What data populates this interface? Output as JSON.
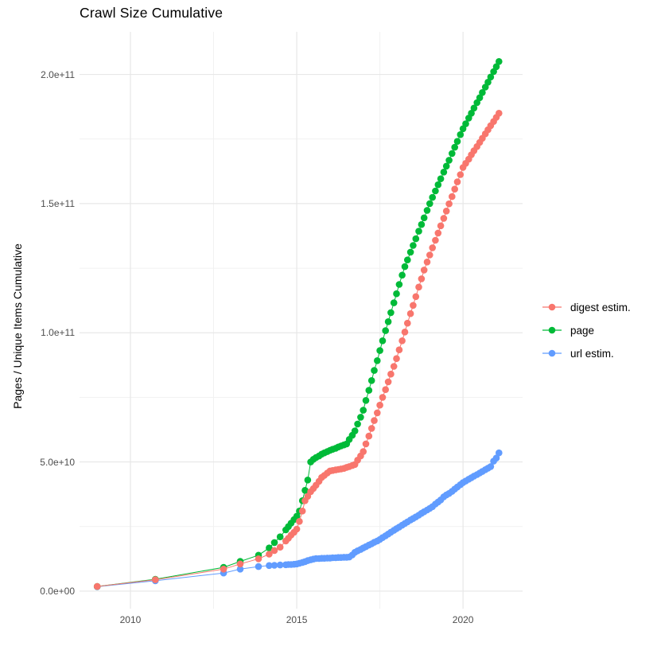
{
  "chart_data": {
    "type": "line",
    "title": "Crawl Size Cumulative",
    "xlabel": "",
    "ylabel": "Pages / Unique Items Cumulative",
    "legend_position": "right",
    "grid": true,
    "xlim": [
      2008.47,
      2021.79
    ],
    "ylim_e9": [
      -6.8,
      216.5
    ],
    "x_ticks": [
      {
        "value": 2010,
        "label": "2010"
      },
      {
        "value": 2015,
        "label": "2015"
      },
      {
        "value": 2020,
        "label": "2020"
      }
    ],
    "x_minor_ticks": [
      2012.5,
      2017.5
    ],
    "y_ticks": [
      {
        "value_e9": 0,
        "label": "0.0e+00"
      },
      {
        "value_e9": 50,
        "label": "5.0e+10"
      },
      {
        "value_e9": 100,
        "label": "1.0e+11"
      },
      {
        "value_e9": 150,
        "label": "1.5e+11"
      },
      {
        "value_e9": 200,
        "label": "2.0e+11"
      }
    ],
    "y_minor_ticks_e9": [
      25,
      75,
      125,
      175
    ],
    "unit_note": "point values are in billions (1e9) of pages / unique items",
    "draw_order": [
      "url estim.",
      "page",
      "digest estim."
    ],
    "series": [
      {
        "name": "digest estim.",
        "color": "#F8766D",
        "points": [
          [
            2009.0,
            1.8
          ],
          [
            2010.75,
            4.4
          ],
          [
            2012.8,
            8.5
          ],
          [
            2013.3,
            10.5
          ],
          [
            2013.85,
            12.5
          ],
          [
            2014.17,
            14.3
          ],
          [
            2014.33,
            15.7
          ],
          [
            2014.5,
            17.0
          ],
          [
            2014.67,
            19.4
          ],
          [
            2014.75,
            20.5
          ],
          [
            2014.83,
            21.7
          ],
          [
            2014.92,
            22.8
          ],
          [
            2015.0,
            24.0
          ],
          [
            2015.08,
            27.0
          ],
          [
            2015.17,
            31.0
          ],
          [
            2015.25,
            35.0
          ],
          [
            2015.33,
            36.7
          ],
          [
            2015.42,
            38.5
          ],
          [
            2015.5,
            39.7
          ],
          [
            2015.58,
            41.0
          ],
          [
            2015.67,
            42.5
          ],
          [
            2015.75,
            44.0
          ],
          [
            2015.83,
            44.8
          ],
          [
            2015.92,
            45.7
          ],
          [
            2016.0,
            46.5
          ],
          [
            2016.08,
            46.7
          ],
          [
            2016.17,
            46.9
          ],
          [
            2016.25,
            47.1
          ],
          [
            2016.33,
            47.3
          ],
          [
            2016.42,
            47.5
          ],
          [
            2016.5,
            47.9
          ],
          [
            2016.58,
            48.2
          ],
          [
            2016.67,
            48.6
          ],
          [
            2016.75,
            49.0
          ],
          [
            2016.83,
            50.7
          ],
          [
            2016.92,
            52.3
          ],
          [
            2017.0,
            54.0
          ],
          [
            2017.08,
            57.0
          ],
          [
            2017.17,
            60.0
          ],
          [
            2017.25,
            63.0
          ],
          [
            2017.33,
            66.0
          ],
          [
            2017.42,
            69.0
          ],
          [
            2017.5,
            72.0
          ],
          [
            2017.58,
            75.0
          ],
          [
            2017.67,
            78.0
          ],
          [
            2017.75,
            81.0
          ],
          [
            2017.83,
            84.0
          ],
          [
            2017.92,
            87.0
          ],
          [
            2018.0,
            90.0
          ],
          [
            2018.08,
            93.4
          ],
          [
            2018.17,
            96.9
          ],
          [
            2018.25,
            100.3
          ],
          [
            2018.33,
            103.7
          ],
          [
            2018.42,
            107.4
          ],
          [
            2018.5,
            110.6
          ],
          [
            2018.58,
            114.0
          ],
          [
            2018.67,
            117.7
          ],
          [
            2018.75,
            120.9
          ],
          [
            2018.83,
            124.3
          ],
          [
            2018.92,
            127.4
          ],
          [
            2019.0,
            130.1
          ],
          [
            2019.08,
            132.9
          ],
          [
            2019.17,
            135.8
          ],
          [
            2019.25,
            138.6
          ],
          [
            2019.33,
            141.4
          ],
          [
            2019.42,
            144.3
          ],
          [
            2019.5,
            147.1
          ],
          [
            2019.58,
            149.9
          ],
          [
            2019.67,
            152.7
          ],
          [
            2019.75,
            155.6
          ],
          [
            2019.83,
            158.4
          ],
          [
            2019.92,
            161.2
          ],
          [
            2020.0,
            164.0
          ],
          [
            2020.08,
            165.6
          ],
          [
            2020.17,
            167.2
          ],
          [
            2020.25,
            168.9
          ],
          [
            2020.33,
            170.5
          ],
          [
            2020.42,
            172.1
          ],
          [
            2020.5,
            173.7
          ],
          [
            2020.58,
            175.3
          ],
          [
            2020.67,
            177.0
          ],
          [
            2020.75,
            178.6
          ],
          [
            2020.83,
            180.2
          ],
          [
            2020.92,
            181.8
          ],
          [
            2021.0,
            183.4
          ],
          [
            2021.08,
            185.0
          ]
        ]
      },
      {
        "name": "page",
        "color": "#00BA38",
        "points": [
          [
            2009.0,
            1.8
          ],
          [
            2010.75,
            4.6
          ],
          [
            2012.8,
            9.2
          ],
          [
            2013.3,
            11.5
          ],
          [
            2013.85,
            13.9
          ],
          [
            2014.17,
            16.7
          ],
          [
            2014.33,
            18.8
          ],
          [
            2014.5,
            21.0
          ],
          [
            2014.67,
            23.7
          ],
          [
            2014.75,
            25.0
          ],
          [
            2014.83,
            26.3
          ],
          [
            2014.92,
            27.7
          ],
          [
            2015.0,
            29.0
          ],
          [
            2015.08,
            31.0
          ],
          [
            2015.17,
            35.0
          ],
          [
            2015.25,
            39.0
          ],
          [
            2015.33,
            43.0
          ],
          [
            2015.42,
            50.0
          ],
          [
            2015.5,
            51.0
          ],
          [
            2015.58,
            51.7
          ],
          [
            2015.67,
            52.3
          ],
          [
            2015.75,
            53.0
          ],
          [
            2015.83,
            53.5
          ],
          [
            2015.92,
            54.0
          ],
          [
            2016.0,
            54.5
          ],
          [
            2016.08,
            54.9
          ],
          [
            2016.17,
            55.3
          ],
          [
            2016.25,
            55.8
          ],
          [
            2016.33,
            56.2
          ],
          [
            2016.42,
            56.6
          ],
          [
            2016.5,
            57.0
          ],
          [
            2016.58,
            58.7
          ],
          [
            2016.67,
            60.3
          ],
          [
            2016.75,
            62.0
          ],
          [
            2016.83,
            64.7
          ],
          [
            2016.92,
            67.3
          ],
          [
            2017.0,
            70.0
          ],
          [
            2017.08,
            73.8
          ],
          [
            2017.17,
            77.7
          ],
          [
            2017.25,
            81.5
          ],
          [
            2017.33,
            85.4
          ],
          [
            2017.42,
            89.2
          ],
          [
            2017.5,
            93.1
          ],
          [
            2017.58,
            96.9
          ],
          [
            2017.67,
            100.8
          ],
          [
            2017.75,
            104.3
          ],
          [
            2017.83,
            107.8
          ],
          [
            2017.92,
            111.6
          ],
          [
            2018.0,
            115.1
          ],
          [
            2018.08,
            118.7
          ],
          [
            2018.17,
            122.3
          ],
          [
            2018.25,
            125.6
          ],
          [
            2018.33,
            128.2
          ],
          [
            2018.42,
            131.2
          ],
          [
            2018.5,
            133.8
          ],
          [
            2018.58,
            136.4
          ],
          [
            2018.67,
            139.3
          ],
          [
            2018.75,
            141.9
          ],
          [
            2018.83,
            144.5
          ],
          [
            2018.92,
            147.4
          ],
          [
            2019.0,
            150.0
          ],
          [
            2019.08,
            152.4
          ],
          [
            2019.17,
            154.9
          ],
          [
            2019.25,
            157.3
          ],
          [
            2019.33,
            159.6
          ],
          [
            2019.42,
            162.2
          ],
          [
            2019.5,
            164.5
          ],
          [
            2019.58,
            166.8
          ],
          [
            2019.67,
            169.4
          ],
          [
            2019.75,
            171.8
          ],
          [
            2019.83,
            174.1
          ],
          [
            2019.92,
            176.7
          ],
          [
            2020.0,
            179.0
          ],
          [
            2020.08,
            180.9
          ],
          [
            2020.17,
            183.1
          ],
          [
            2020.25,
            185.0
          ],
          [
            2020.33,
            187.0
          ],
          [
            2020.42,
            189.1
          ],
          [
            2020.5,
            191.0
          ],
          [
            2020.58,
            193.0
          ],
          [
            2020.67,
            195.1
          ],
          [
            2020.75,
            197.0
          ],
          [
            2020.83,
            199.0
          ],
          [
            2020.92,
            201.1
          ],
          [
            2021.0,
            203.0
          ],
          [
            2021.08,
            205.0
          ]
        ]
      },
      {
        "name": "url estim.",
        "color": "#619CFF",
        "points": [
          [
            2009.0,
            1.7
          ],
          [
            2010.75,
            4.0
          ],
          [
            2012.8,
            7.0
          ],
          [
            2013.3,
            8.5
          ],
          [
            2013.85,
            9.5
          ],
          [
            2014.17,
            9.9
          ],
          [
            2014.33,
            10.0
          ],
          [
            2014.5,
            10.1
          ],
          [
            2014.67,
            10.2
          ],
          [
            2014.75,
            10.3
          ],
          [
            2014.83,
            10.3
          ],
          [
            2014.92,
            10.4
          ],
          [
            2015.0,
            10.5
          ],
          [
            2015.08,
            10.8
          ],
          [
            2015.17,
            11.1
          ],
          [
            2015.25,
            11.4
          ],
          [
            2015.33,
            11.8
          ],
          [
            2015.42,
            12.1
          ],
          [
            2015.5,
            12.4
          ],
          [
            2015.58,
            12.6
          ],
          [
            2015.67,
            12.6
          ],
          [
            2015.75,
            12.7
          ],
          [
            2015.83,
            12.7
          ],
          [
            2015.92,
            12.8
          ],
          [
            2016.0,
            12.8
          ],
          [
            2016.08,
            12.9
          ],
          [
            2016.17,
            12.9
          ],
          [
            2016.25,
            13.0
          ],
          [
            2016.33,
            13.0
          ],
          [
            2016.42,
            13.1
          ],
          [
            2016.5,
            13.1
          ],
          [
            2016.58,
            13.2
          ],
          [
            2016.67,
            14.0
          ],
          [
            2016.75,
            15.0
          ],
          [
            2016.83,
            15.6
          ],
          [
            2016.92,
            16.1
          ],
          [
            2017.0,
            16.7
          ],
          [
            2017.08,
            17.2
          ],
          [
            2017.17,
            17.8
          ],
          [
            2017.25,
            18.3
          ],
          [
            2017.33,
            18.9
          ],
          [
            2017.42,
            19.4
          ],
          [
            2017.5,
            20.0
          ],
          [
            2017.58,
            20.7
          ],
          [
            2017.67,
            21.4
          ],
          [
            2017.75,
            22.1
          ],
          [
            2017.83,
            22.8
          ],
          [
            2017.92,
            23.5
          ],
          [
            2018.0,
            24.2
          ],
          [
            2018.08,
            24.8
          ],
          [
            2018.17,
            25.5
          ],
          [
            2018.25,
            26.2
          ],
          [
            2018.33,
            26.8
          ],
          [
            2018.42,
            27.5
          ],
          [
            2018.5,
            28.1
          ],
          [
            2018.58,
            28.7
          ],
          [
            2018.67,
            29.4
          ],
          [
            2018.75,
            30.1
          ],
          [
            2018.83,
            30.7
          ],
          [
            2018.92,
            31.4
          ],
          [
            2019.0,
            32.0
          ],
          [
            2019.08,
            32.7
          ],
          [
            2019.17,
            33.7
          ],
          [
            2019.25,
            34.5
          ],
          [
            2019.33,
            35.3
          ],
          [
            2019.42,
            36.5
          ],
          [
            2019.5,
            37.2
          ],
          [
            2019.58,
            37.8
          ],
          [
            2019.67,
            38.6
          ],
          [
            2019.75,
            39.5
          ],
          [
            2019.83,
            40.3
          ],
          [
            2019.92,
            41.2
          ],
          [
            2020.0,
            42.0
          ],
          [
            2020.08,
            42.6
          ],
          [
            2020.17,
            43.3
          ],
          [
            2020.25,
            43.9
          ],
          [
            2020.33,
            44.5
          ],
          [
            2020.42,
            45.1
          ],
          [
            2020.5,
            45.7
          ],
          [
            2020.58,
            46.3
          ],
          [
            2020.67,
            47.0
          ],
          [
            2020.75,
            47.6
          ],
          [
            2020.83,
            48.2
          ],
          [
            2020.92,
            50.3
          ],
          [
            2021.0,
            51.5
          ],
          [
            2021.08,
            53.5
          ]
        ]
      }
    ]
  },
  "colors": {
    "background": "#FFFFFF",
    "grid_major": "#E7E7E7",
    "grid_minor": "#F1F1F1",
    "tick_text": "#4D4D4D",
    "text": "#000000"
  }
}
